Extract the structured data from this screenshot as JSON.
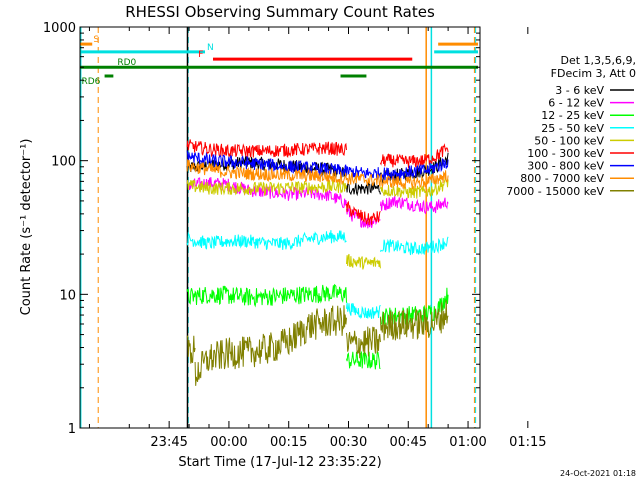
{
  "chart_data": {
    "type": "line",
    "title": "RHESSI Observing Summary Count Rates",
    "xlabel": "Start Time (17-Jul-12 23:35:22)",
    "ylabel": "Count Rate (s⁻¹ detector⁻¹)",
    "yscale": "log",
    "ylim": [
      1,
      1000
    ],
    "xlim_minutes": [
      -12.37,
      88
    ],
    "x_ticks": [
      {
        "min": 10,
        "label": "23:45"
      },
      {
        "min": 25,
        "label": "00:00"
      },
      {
        "min": 40,
        "label": "00:15"
      },
      {
        "min": 55,
        "label": "00:30"
      },
      {
        "min": 70,
        "label": "00:45"
      },
      {
        "min": 85,
        "label": "01:00"
      },
      {
        "min": 100,
        "label": "01:15"
      }
    ],
    "y_ticks": [
      {
        "value": 1,
        "label": "1"
      },
      {
        "value": 10,
        "label": "10"
      },
      {
        "value": 100,
        "label": "100"
      },
      {
        "value": 1000,
        "label": "1000"
      }
    ],
    "legend": {
      "position": "right",
      "header": [
        "Det 1,3,5,6,9,",
        "FDecim 3, Att 0"
      ]
    },
    "series": [
      {
        "name": "3 - 6 keV",
        "color": "#000000",
        "segments": [
          {
            "x": [
              14.5,
              20,
              25,
              30,
              35,
              40,
              45,
              50,
              54.5
            ],
            "y": [
              88,
              92,
              95,
              97,
              94,
              92,
              88,
              86,
              80
            ]
          },
          {
            "x": [
              54.5,
              63
            ],
            "y": [
              62,
              62
            ]
          },
          {
            "x": [
              63,
              66,
              70,
              74,
              77,
              80
            ],
            "y": [
              75,
              77,
              80,
              84,
              90,
              105
            ]
          }
        ]
      },
      {
        "name": "6 - 12 keV",
        "color": "#ff00ff",
        "segments": [
          {
            "x": [
              14.5,
              20,
              25,
              30,
              35,
              40,
              45,
              50,
              54.5
            ],
            "y": [
              65,
              68,
              66,
              60,
              58,
              56,
              57,
              55,
              48
            ]
          },
          {
            "x": [
              54.5,
              57,
              60,
              63
            ],
            "y": [
              42,
              37,
              34,
              38
            ]
          },
          {
            "x": [
              63,
              66,
              70,
              74,
              77,
              80
            ],
            "y": [
              45,
              50,
              48,
              45,
              45,
              50
            ]
          }
        ]
      },
      {
        "name": "12 - 25 keV",
        "color": "#00ff00",
        "segments": [
          {
            "x": [
              14.5,
              20,
              25,
              30,
              35,
              40,
              45,
              50,
              54.5
            ],
            "y": [
              9.5,
              10,
              9.8,
              9.5,
              9.6,
              9.8,
              10,
              10.2,
              10
            ]
          },
          {
            "x": [
              54.5,
              57,
              60,
              63
            ],
            "y": [
              3.2,
              3.2,
              3.2,
              3.2
            ]
          },
          {
            "x": [
              63,
              66,
              70,
              74,
              77,
              80
            ],
            "y": [
              6.8,
              6.9,
              7.0,
              7.1,
              7.5,
              10
            ]
          }
        ]
      },
      {
        "name": "25 - 50 keV",
        "color": "#00ffff",
        "segments": [
          {
            "x": [
              14.5,
              20,
              25,
              30,
              35,
              40,
              45,
              50,
              54.5
            ],
            "y": [
              26,
              24,
              25,
              25,
              24,
              24,
              26,
              27,
              27
            ]
          },
          {
            "x": [
              54.5,
              57,
              60,
              63
            ],
            "y": [
              8,
              7.5,
              7.2,
              7.5
            ]
          },
          {
            "x": [
              63,
              66,
              70,
              74,
              77,
              80
            ],
            "y": [
              23,
              23,
              22,
              22,
              23,
              25
            ]
          }
        ]
      },
      {
        "name": "50 - 100 keV",
        "color": "#cccc00",
        "segments": [
          {
            "x": [
              14.5,
              20,
              25,
              30,
              35,
              40,
              45,
              50,
              54.5
            ],
            "y": [
              65,
              62,
              62,
              62,
              62,
              63,
              63,
              64,
              64
            ]
          },
          {
            "x": [
              54.5,
              57,
              60,
              63
            ],
            "y": [
              18,
              17.5,
              17,
              17.5
            ]
          },
          {
            "x": [
              63,
              66,
              70,
              74,
              77,
              80
            ],
            "y": [
              60,
              60,
              58,
              58,
              62,
              70
            ]
          }
        ]
      },
      {
        "name": "100 - 300 keV",
        "color": "#ff0000",
        "segments": [
          {
            "x": [
              14.5,
              20,
              25,
              30,
              35,
              40,
              45,
              50,
              54.5
            ],
            "y": [
              130,
              122,
              118,
              118,
              118,
              120,
              122,
              124,
              120
            ]
          },
          {
            "x": [
              54.5,
              57,
              60,
              63
            ],
            "y": [
              45,
              40,
              36,
              38
            ]
          },
          {
            "x": [
              63,
              66,
              70,
              74,
              77,
              80
            ],
            "y": [
              100,
              100,
              98,
              100,
              108,
              125
            ]
          }
        ]
      },
      {
        "name": "300 - 800 keV",
        "color": "#0000ff",
        "segments": [
          {
            "x": [
              14.5,
              20,
              25,
              30,
              35,
              40,
              45,
              50,
              54.5,
              60,
              65,
              70,
              75,
              80
            ],
            "y": [
              108,
              100,
              98,
              96,
              93,
              90,
              88,
              86,
              83,
              80,
              80,
              82,
              85,
              98
            ]
          }
        ]
      },
      {
        "name": "800 - 7000 keV",
        "color": "#ff8c00",
        "segments": [
          {
            "x": [
              14.5,
              20,
              25,
              30,
              35,
              40,
              45,
              50,
              54.5,
              60,
              65,
              70,
              75,
              80
            ],
            "y": [
              92,
              86,
              82,
              80,
              79,
              78,
              77,
              76,
              74,
              72,
              70,
              68,
              70,
              78
            ]
          }
        ]
      },
      {
        "name": "7000 - 15000 keV",
        "color": "#808000",
        "segments": [
          {
            "x": [
              14.5,
              16.5
            ],
            "y": [
              3.8,
              3.8
            ]
          },
          {
            "x": [
              16.5,
              20,
              25,
              30,
              35,
              40,
              45,
              50,
              54.5
            ],
            "y": [
              2.5,
              3.3,
              3.6,
              3.7,
              3.9,
              4.4,
              5.8,
              6.2,
              6.4
            ]
          },
          {
            "x": [
              54.5,
              57,
              60,
              63
            ],
            "y": [
              4.2,
              4.3,
              4.4,
              4.4
            ]
          },
          {
            "x": [
              63,
              66,
              70,
              74,
              77,
              80
            ],
            "y": [
              5.7,
              5.9,
              6.0,
              6.0,
              6.2,
              7.5
            ]
          }
        ]
      }
    ],
    "flags": [
      {
        "label": "S",
        "color": "#ff8c00",
        "level": 745,
        "segments": [
          [
            -12.37,
            -9.3
          ]
        ],
        "label_at": -9.0
      },
      {
        "label": "N",
        "color": "#00e0e0",
        "level": 652,
        "segments": [
          [
            -12.37,
            19.0
          ]
        ],
        "label_at": 19.5
      },
      {
        "label": "F",
        "color": "#ff0000",
        "level": 575,
        "segments": [
          [
            21.0,
            71.0
          ]
        ],
        "label_at": 17.3
      },
      {
        "label": "RD0",
        "color": "#008000",
        "level": 500,
        "segments": [
          [
            -12.37,
            87.5
          ]
        ],
        "label_at": -3.0
      },
      {
        "label": "RD6",
        "color": "#008000",
        "level": 430,
        "segments": [
          [
            -6.2,
            -4.0
          ],
          [
            53.0,
            59.5
          ]
        ],
        "label_at": -12.0
      },
      {
        "label": "",
        "color": "#ff8c00",
        "level": 745,
        "segments": [
          [
            77.5,
            87.5
          ]
        ]
      },
      {
        "label": "",
        "color": "#00e0e0",
        "level": 652,
        "segments": [
          [
            76.5,
            87.5
          ]
        ]
      }
    ],
    "events": [
      {
        "x": 74.5,
        "color": "#ff8c00",
        "style": "solid"
      },
      {
        "x": 75.8,
        "color": "#00e0e0",
        "style": "solid"
      },
      {
        "x": -7.8,
        "color": "#ff8c00",
        "style": "dashed"
      },
      {
        "x": 86.6,
        "color": "#ff8c00",
        "style": "dashed"
      },
      {
        "x": 14.8,
        "color": "#00e0e0",
        "style": "dashed"
      },
      {
        "x": 86.9,
        "color": "#00e0e0",
        "style": "dashed"
      },
      {
        "x": -12.2,
        "color": "#00e0e0",
        "style": "solid"
      },
      {
        "x": 14.6,
        "color": "#000000",
        "style": "solid"
      }
    ],
    "timestamp": "24-Oct-2021 01:18"
  }
}
